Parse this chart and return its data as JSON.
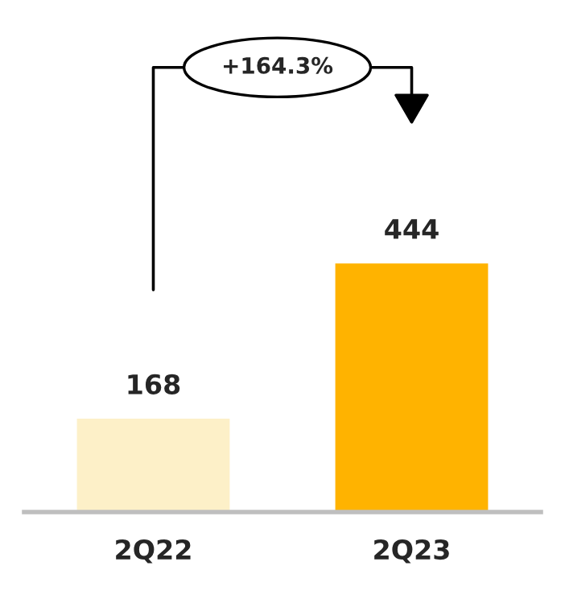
{
  "chart_data": {
    "type": "bar",
    "categories": [
      "2Q22",
      "2Q23"
    ],
    "values": [
      168,
      444
    ],
    "colors": [
      "#fdf0c8",
      "#ffb300"
    ],
    "data_labels": true,
    "tick_labels": "x",
    "grid": false,
    "legend": false,
    "annotations": [
      "+164.3%"
    ]
  }
}
